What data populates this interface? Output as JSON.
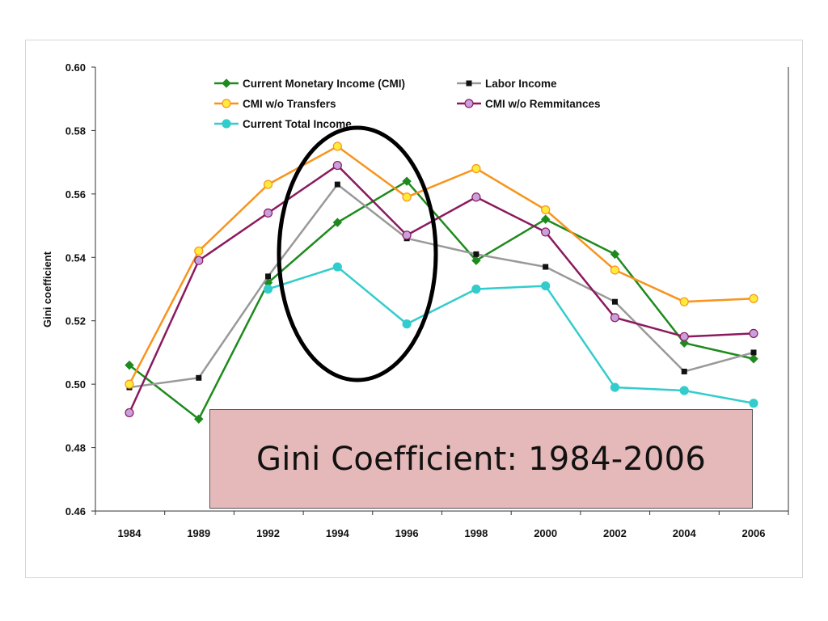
{
  "chart_data": {
    "type": "line",
    "title": "",
    "xlabel": "",
    "ylabel": "Gini coefficient",
    "categories": [
      "1984",
      "1989",
      "1992",
      "1994",
      "1996",
      "1998",
      "2000",
      "2002",
      "2004",
      "2006"
    ],
    "ylim": [
      0.46,
      0.6
    ],
    "yticks": [
      "0.46",
      "0.48",
      "0.50",
      "0.52",
      "0.54",
      "0.56",
      "0.58",
      "0.60"
    ],
    "grid": false,
    "legend_position": "top",
    "series": [
      {
        "name": "Current Monetary Income (CMI)",
        "color": "#1e8a1e",
        "marker": "diamond",
        "values": [
          0.506,
          0.489,
          0.532,
          0.551,
          0.564,
          0.539,
          0.552,
          0.541,
          0.513,
          0.508
        ]
      },
      {
        "name": "Labor Income",
        "color": "#999999",
        "marker": "square",
        "values": [
          0.499,
          0.502,
          0.534,
          0.563,
          0.546,
          0.541,
          0.537,
          0.526,
          0.504,
          0.51
        ]
      },
      {
        "name": "CMI w/o Transfers",
        "color": "#f7941d",
        "marker": "circle",
        "values": [
          0.5,
          0.542,
          0.563,
          0.575,
          0.559,
          0.568,
          0.555,
          0.536,
          0.526,
          0.527
        ]
      },
      {
        "name": "CMI w/o Remmitances",
        "color": "#8b1a5e",
        "marker": "circle",
        "values": [
          0.491,
          0.539,
          0.554,
          0.569,
          0.547,
          0.559,
          0.548,
          0.521,
          0.515,
          0.516
        ]
      },
      {
        "name": "Current Total Income",
        "color": "#33cccc",
        "marker": "circle",
        "values": [
          null,
          null,
          0.53,
          0.537,
          0.519,
          0.53,
          0.531,
          0.499,
          0.498,
          0.494
        ]
      }
    ],
    "annotation": {
      "shape": "ellipse",
      "label": "highlight around 1994–1996"
    }
  },
  "caption": {
    "text": "Gini Coefficient: 1984-2006"
  }
}
